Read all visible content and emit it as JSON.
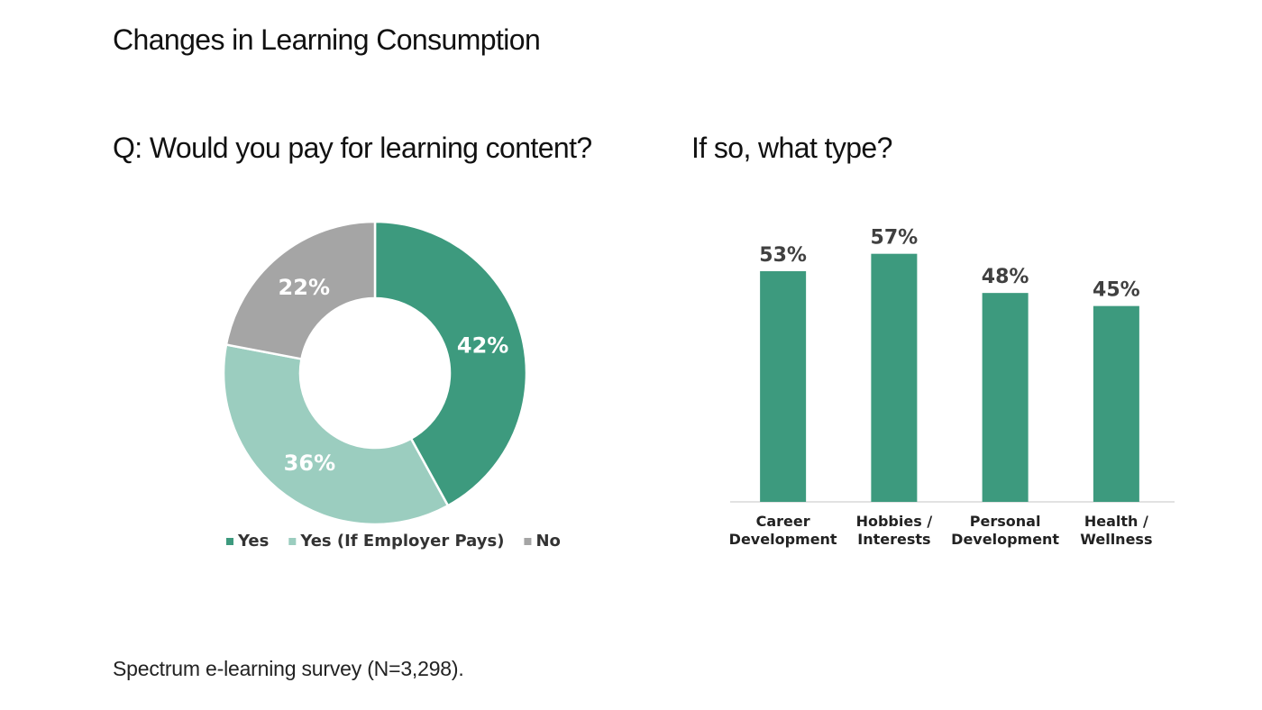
{
  "page": {
    "title": "Changes in Learning Consumption",
    "footnote": "Spectrum e-learning survey (N=3,298)."
  },
  "chart_data": [
    {
      "type": "pie",
      "variant": "donut",
      "title": "Q: Would you pay for learning content?",
      "categories": [
        "Yes",
        "Yes (If Employer Pays)",
        "No"
      ],
      "values": [
        42,
        36,
        22
      ],
      "value_labels": [
        "42%",
        "36%",
        "22%"
      ],
      "colors": [
        "#3d9a7e",
        "#9bcdbf",
        "#a5a5a5"
      ],
      "legend": "bottom"
    },
    {
      "type": "bar",
      "title": "If so, what type?",
      "categories": [
        [
          "Career",
          "Development"
        ],
        [
          "Hobbies /",
          "Interests"
        ],
        [
          "Personal",
          "Development"
        ],
        [
          "Health /",
          "Wellness"
        ]
      ],
      "values": [
        53,
        57,
        48,
        45
      ],
      "value_labels": [
        "53%",
        "57%",
        "48%",
        "45%"
      ],
      "ylim": [
        0,
        60
      ],
      "grid": false,
      "color": "#3d9a7e",
      "axis_color": "#d9d9d9"
    }
  ]
}
